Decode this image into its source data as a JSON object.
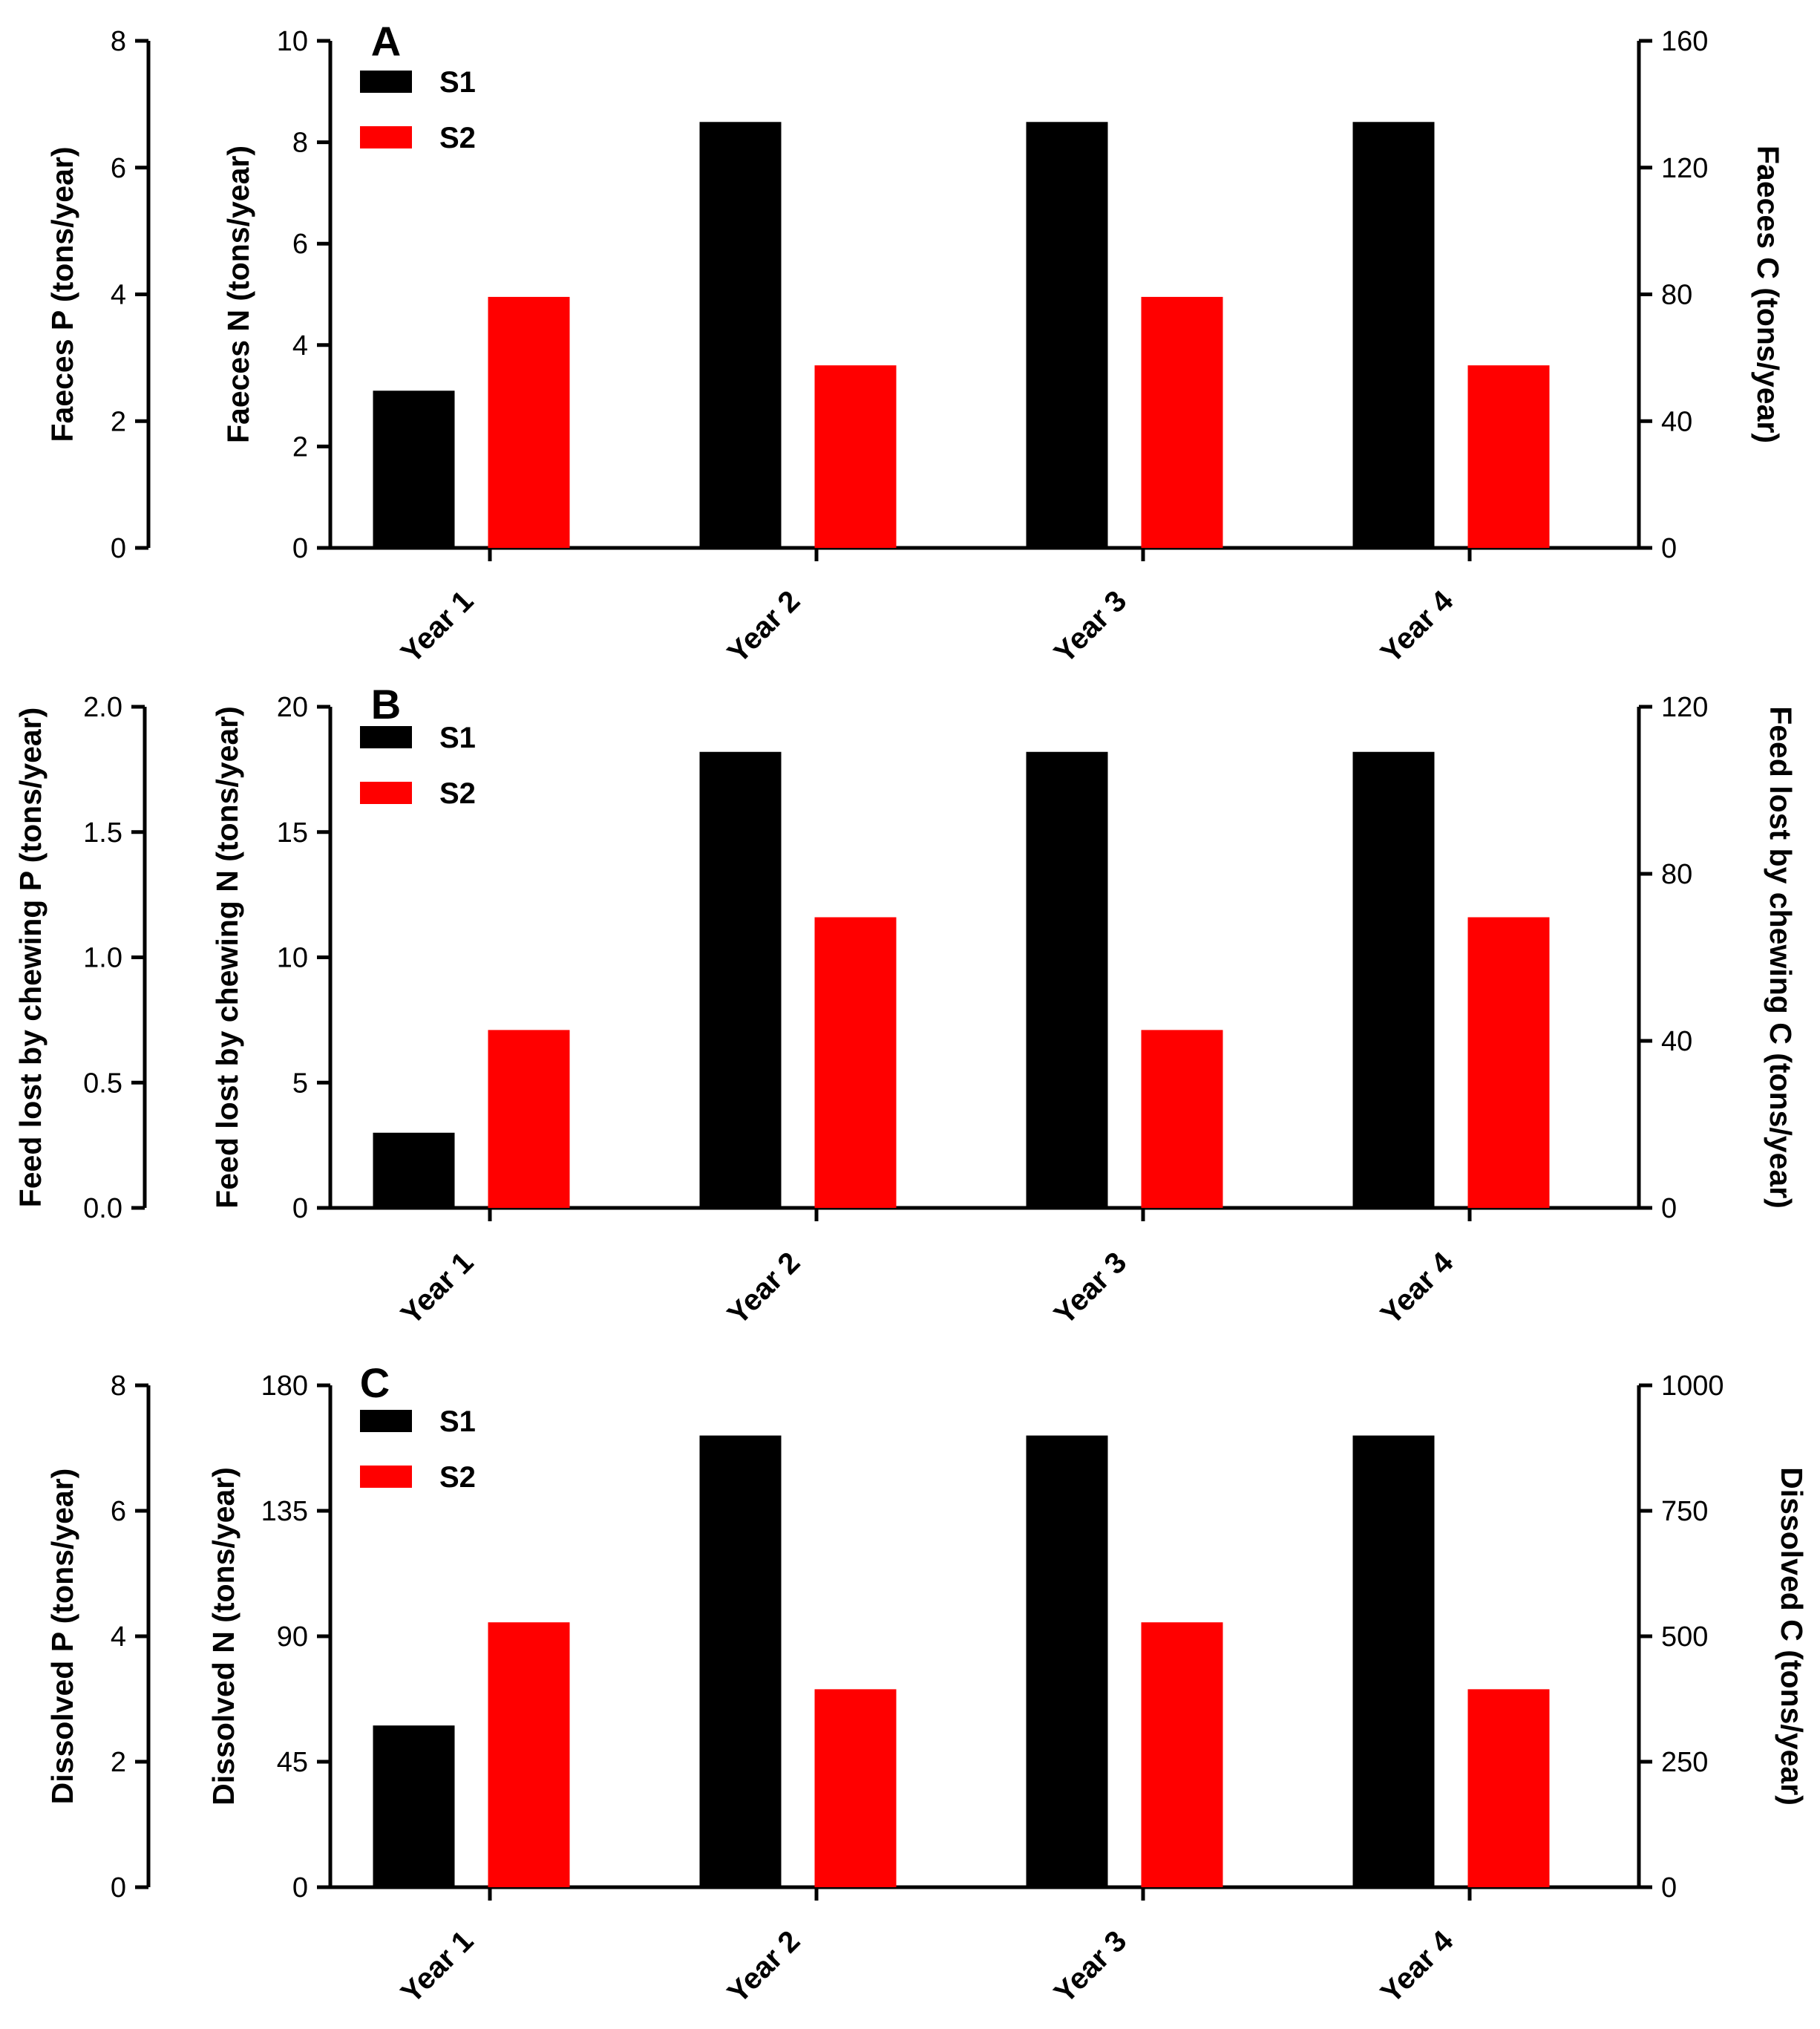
{
  "chart_data": [
    {
      "type": "bar",
      "panel": "A",
      "categories": [
        "Year 1",
        "Year 2",
        "Year 3",
        "Year 4"
      ],
      "series": [
        {
          "name": "S1",
          "values": [
            3.1,
            8.4,
            8.4,
            8.4
          ],
          "color": "#000000"
        },
        {
          "name": "S2",
          "values": [
            4.95,
            3.6,
            4.95,
            3.6
          ],
          "color": "#ff0000"
        }
      ],
      "left_outer_axis": {
        "label": "Faeces P (tons/year)",
        "ylim": [
          0,
          8
        ],
        "ticks": [
          "0",
          "2",
          "4",
          "6",
          "8"
        ]
      },
      "left_axis": {
        "label": "Faeces N (tons/year)",
        "ylim": [
          0,
          10
        ],
        "ticks": [
          "0",
          "2",
          "4",
          "6",
          "8",
          "10"
        ]
      },
      "right_axis": {
        "label": "Faeces C (tons/year)",
        "ylim": [
          0,
          160
        ],
        "ticks": [
          "0",
          "40",
          "80",
          "120",
          "160"
        ]
      }
    },
    {
      "type": "bar",
      "panel": "B",
      "categories": [
        "Year 1",
        "Year 2",
        "Year 3",
        "Year 4"
      ],
      "series": [
        {
          "name": "S1",
          "values": [
            3.0,
            18.2,
            18.2,
            18.2
          ],
          "color": "#000000"
        },
        {
          "name": "S2",
          "values": [
            7.1,
            11.6,
            7.1,
            11.6
          ],
          "color": "#ff0000"
        }
      ],
      "left_outer_axis": {
        "label": "Feed lost by chewing P (tons/year)",
        "ylim": [
          0,
          2
        ],
        "ticks": [
          "0.0",
          "0.5",
          "1.0",
          "1.5",
          "2.0"
        ]
      },
      "left_axis": {
        "label": "Feed lost by chewing N (tons/year)",
        "ylim": [
          0,
          20
        ],
        "ticks": [
          "0",
          "5",
          "10",
          "15",
          "20"
        ]
      },
      "right_axis": {
        "label": "Feed lost by chewing C (tons/year)",
        "ylim": [
          0,
          120
        ],
        "ticks": [
          "0",
          "40",
          "80",
          "120"
        ]
      }
    },
    {
      "type": "bar",
      "panel": "C",
      "categories": [
        "Year 1",
        "Year 2",
        "Year 3",
        "Year 4"
      ],
      "series": [
        {
          "name": "S1",
          "values": [
            58,
            162,
            162,
            162
          ],
          "color": "#000000"
        },
        {
          "name": "S2",
          "values": [
            95,
            71,
            95,
            71
          ],
          "color": "#ff0000"
        }
      ],
      "left_outer_axis": {
        "label": "Dissolved P (tons/year)",
        "ylim": [
          0,
          8
        ],
        "ticks": [
          "0",
          "2",
          "4",
          "6",
          "8"
        ]
      },
      "left_axis": {
        "label": "Dissolved N (tons/year)",
        "ylim": [
          0,
          180
        ],
        "ticks": [
          "0",
          "45",
          "90",
          "135",
          "180"
        ]
      },
      "right_axis": {
        "label": "Dissolved C (tons/year)",
        "ylim": [
          0,
          1000
        ],
        "ticks": [
          "0",
          "250",
          "500",
          "750",
          "1000"
        ]
      }
    }
  ]
}
